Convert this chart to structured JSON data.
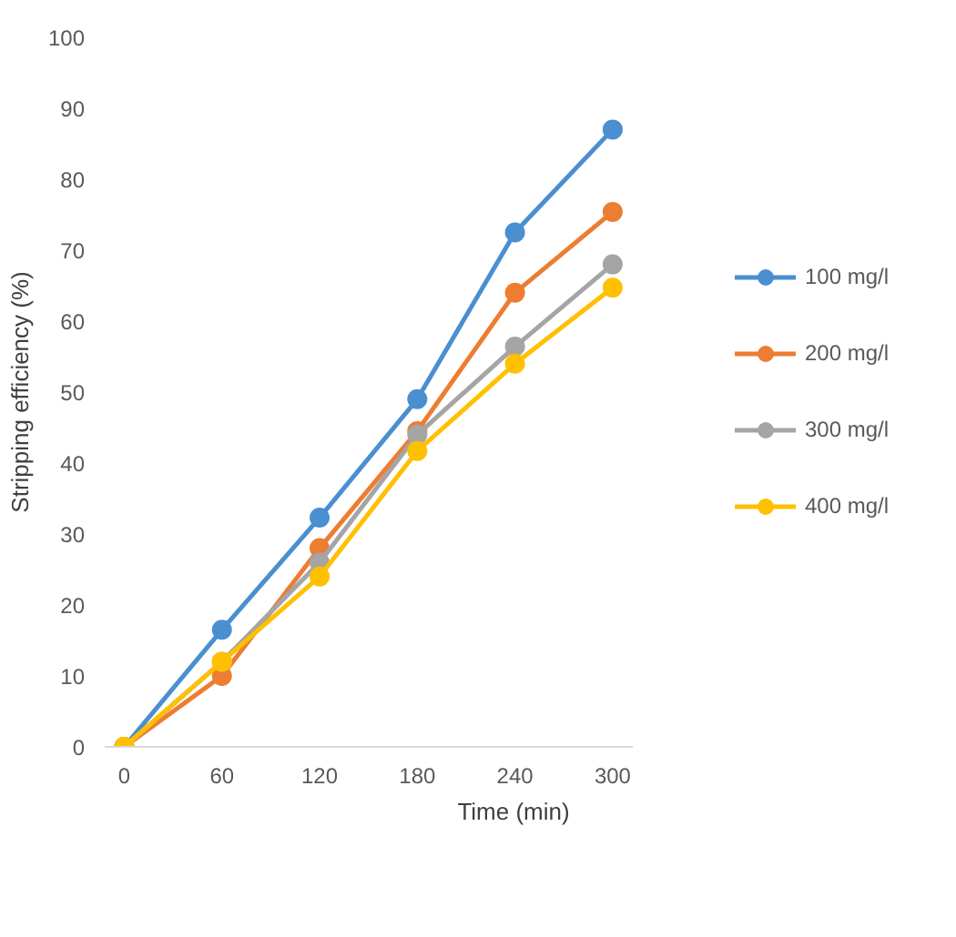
{
  "chart_data": {
    "type": "line",
    "xlabel": "Time (min)",
    "ylabel": "Stripping efficiency (%)",
    "x": [
      0,
      60,
      120,
      180,
      240,
      300
    ],
    "series": [
      {
        "name": "100 mg/l",
        "color": "#4a8fd0",
        "values": [
          0,
          16.5,
          32.3,
          49,
          72.5,
          87
        ]
      },
      {
        "name": "200 mg/l",
        "color": "#ed7d31",
        "values": [
          0,
          10,
          28,
          44.5,
          64,
          75.4
        ]
      },
      {
        "name": "300 mg/l",
        "color": "#a5a5a5",
        "values": [
          0,
          12,
          26,
          44,
          56.4,
          68
        ]
      },
      {
        "name": "400 mg/l",
        "color": "#ffc000",
        "values": [
          0,
          12,
          24,
          41.7,
          54,
          64.7
        ]
      }
    ],
    "xlim": [
      -12,
      312
    ],
    "xticks": [
      0,
      60,
      120,
      180,
      240,
      300
    ],
    "ylim": [
      0,
      100
    ],
    "yticks": [
      0,
      10,
      20,
      30,
      40,
      50,
      60,
      70,
      80,
      90,
      100
    ],
    "grid": false,
    "legend": "right",
    "marker": "circle",
    "line_style": "solid"
  }
}
